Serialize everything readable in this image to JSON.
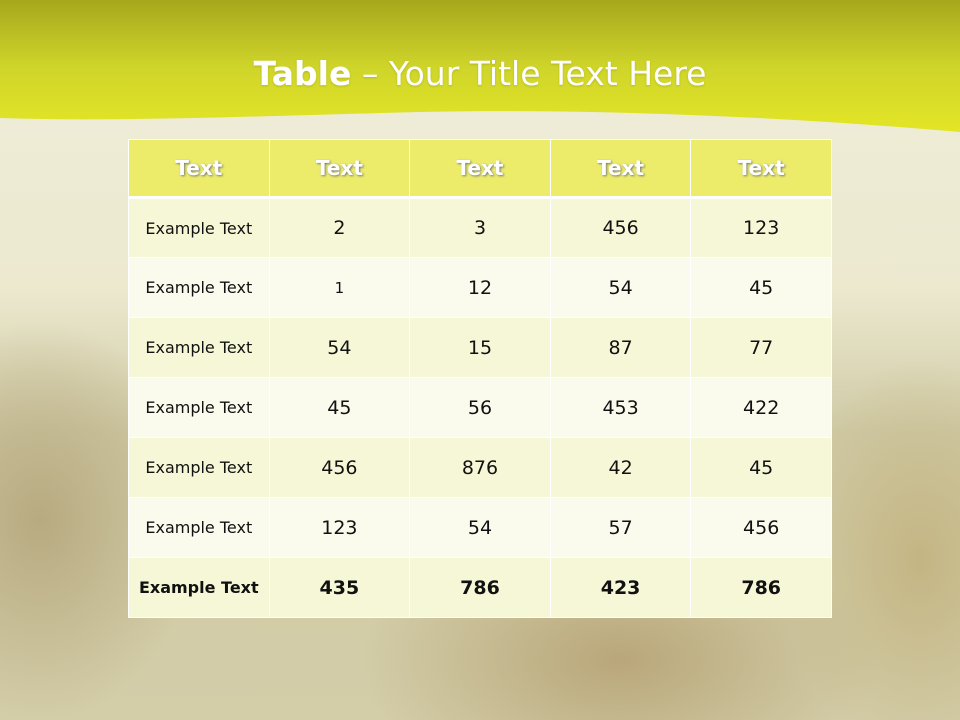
{
  "slide": {
    "title_bold": "Table",
    "title_rest": " – Your Title Text Here"
  },
  "colors": {
    "header": "#ecec6a",
    "band": "#dde128",
    "row_odd": "#f6f7d6",
    "row_even": "#fafbed"
  },
  "table": {
    "headers": [
      "Text",
      "Text",
      "Text",
      "Text",
      "Text"
    ],
    "rows": [
      [
        "Example Text",
        "2",
        "3",
        "456",
        "123"
      ],
      [
        "Example Text",
        "1",
        "12",
        "54",
        "45"
      ],
      [
        "Example Text",
        "54",
        "15",
        "87",
        "77"
      ],
      [
        "Example Text",
        "45",
        "56",
        "453",
        "422"
      ],
      [
        "Example Text",
        "456",
        "876",
        "42",
        "45"
      ],
      [
        "Example Text",
        "123",
        "54",
        "57",
        "456"
      ],
      [
        "Example Text",
        "435",
        "786",
        "423",
        "786"
      ]
    ]
  }
}
